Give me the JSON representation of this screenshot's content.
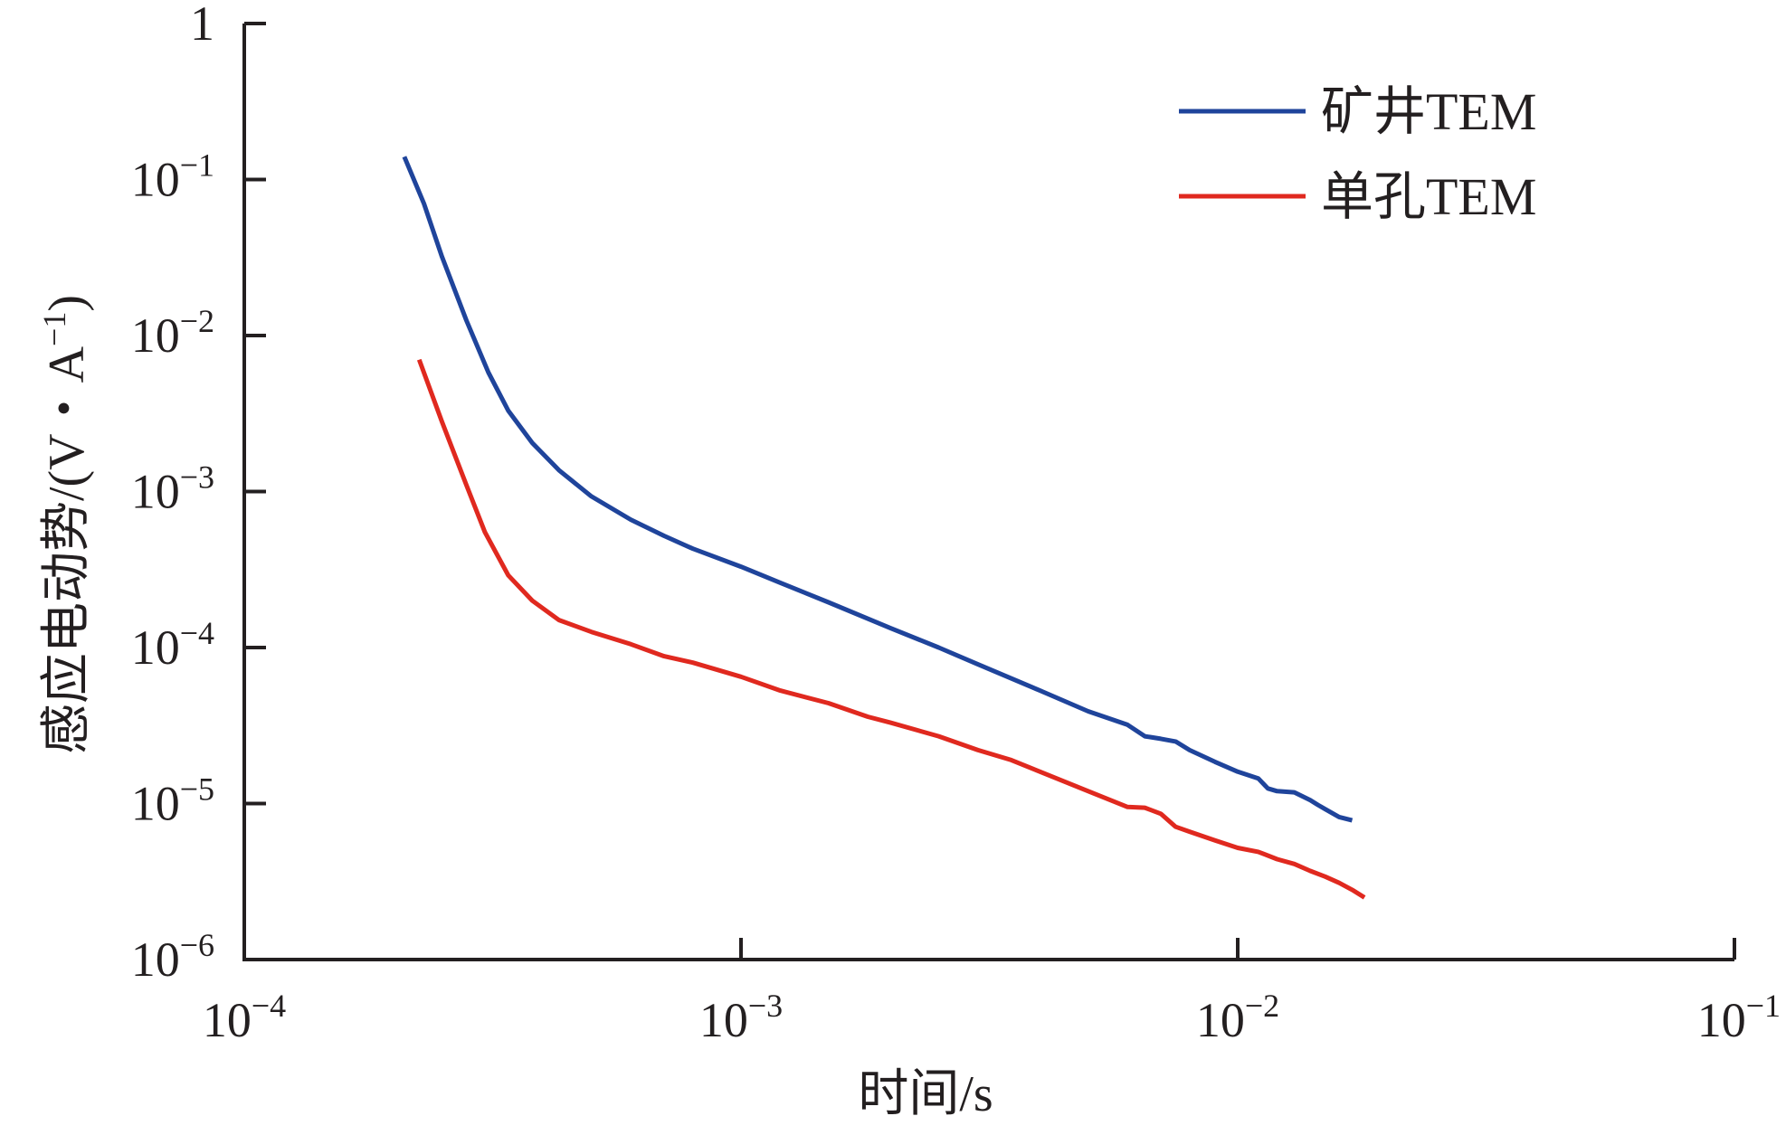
{
  "chart_data": {
    "type": "line",
    "xlabel": "时间/s",
    "ylabel": "感应电动势/(V・A",
    "ylabel_sup": "−1",
    "ylabel_end": ")",
    "x_scale": "log",
    "y_scale": "log",
    "xlim": [
      0.0001,
      0.1
    ],
    "ylim": [
      1e-06,
      1
    ],
    "x_ticks": [
      {
        "value": 0.0001,
        "base": "10",
        "exp": "−4"
      },
      {
        "value": 0.001,
        "base": "10",
        "exp": "−3"
      },
      {
        "value": 0.01,
        "base": "10",
        "exp": "−2"
      },
      {
        "value": 0.1,
        "base": "10",
        "exp": "−1"
      }
    ],
    "y_ticks": [
      {
        "value": 1,
        "base": "1",
        "exp": ""
      },
      {
        "value": 0.1,
        "base": "10",
        "exp": "−1"
      },
      {
        "value": 0.01,
        "base": "10",
        "exp": "−2"
      },
      {
        "value": 0.001,
        "base": "10",
        "exp": "−3"
      },
      {
        "value": 0.0001,
        "base": "10",
        "exp": "−4"
      },
      {
        "value": 1e-05,
        "base": "10",
        "exp": "−5"
      },
      {
        "value": 1e-06,
        "base": "10",
        "exp": "−6"
      }
    ],
    "grid": false,
    "legend_position": "top-right",
    "series": [
      {
        "name": "矿井TEM",
        "color": "#1f449b",
        "x": [
          0.00021,
          0.00023,
          0.00025,
          0.00028,
          0.00031,
          0.00034,
          0.00038,
          0.00043,
          0.0005,
          0.0006,
          0.0007,
          0.0008,
          0.001,
          0.0012,
          0.0015,
          0.002,
          0.0025,
          0.003,
          0.004,
          0.005,
          0.006,
          0.0065,
          0.007,
          0.0075,
          0.008,
          0.009,
          0.01,
          0.011,
          0.0115,
          0.012,
          0.013,
          0.014,
          0.0145,
          0.015,
          0.016,
          0.017
        ],
        "y": [
          0.14,
          0.07,
          0.032,
          0.0125,
          0.0058,
          0.0033,
          0.00205,
          0.00137,
          0.00093,
          0.00066,
          0.00052,
          0.00043,
          0.00033,
          0.00026,
          0.000195,
          0.000133,
          0.0001,
          7.8e-05,
          5.3e-05,
          3.9e-05,
          3.2e-05,
          2.7e-05,
          2.6e-05,
          2.5e-05,
          2.2e-05,
          1.85e-05,
          1.6e-05,
          1.45e-05,
          1.25e-05,
          1.2e-05,
          1.18e-05,
          1.05e-05,
          9.8e-06,
          9.2e-06,
          8.2e-06,
          7.8e-06
        ]
      },
      {
        "name": "单孔TEM",
        "color": "#e0291f",
        "x": [
          0.000225,
          0.00025,
          0.00028,
          0.000305,
          0.00034,
          0.00038,
          0.00043,
          0.0005,
          0.0006,
          0.0007,
          0.0008,
          0.001,
          0.0012,
          0.0015,
          0.0018,
          0.002,
          0.0025,
          0.003,
          0.0035,
          0.004,
          0.005,
          0.006,
          0.0065,
          0.007,
          0.0075,
          0.008,
          0.009,
          0.01,
          0.011,
          0.012,
          0.013,
          0.014,
          0.015,
          0.016,
          0.017,
          0.018
        ],
        "y": [
          0.007,
          0.0028,
          0.0011,
          0.00055,
          0.00029,
          0.0002,
          0.00015,
          0.000126,
          0.000105,
          8.8e-05,
          8e-05,
          6.5e-05,
          5.3e-05,
          4.4e-05,
          3.6e-05,
          3.3e-05,
          2.7e-05,
          2.2e-05,
          1.9e-05,
          1.6e-05,
          1.2e-05,
          9.5e-06,
          9.4e-06,
          8.6e-06,
          7.1e-06,
          6.6e-06,
          5.8e-06,
          5.2e-06,
          4.9e-06,
          4.4e-06,
          4.1e-06,
          3.7e-06,
          3.4e-06,
          3.1e-06,
          2.8e-06,
          2.5e-06
        ]
      }
    ]
  }
}
